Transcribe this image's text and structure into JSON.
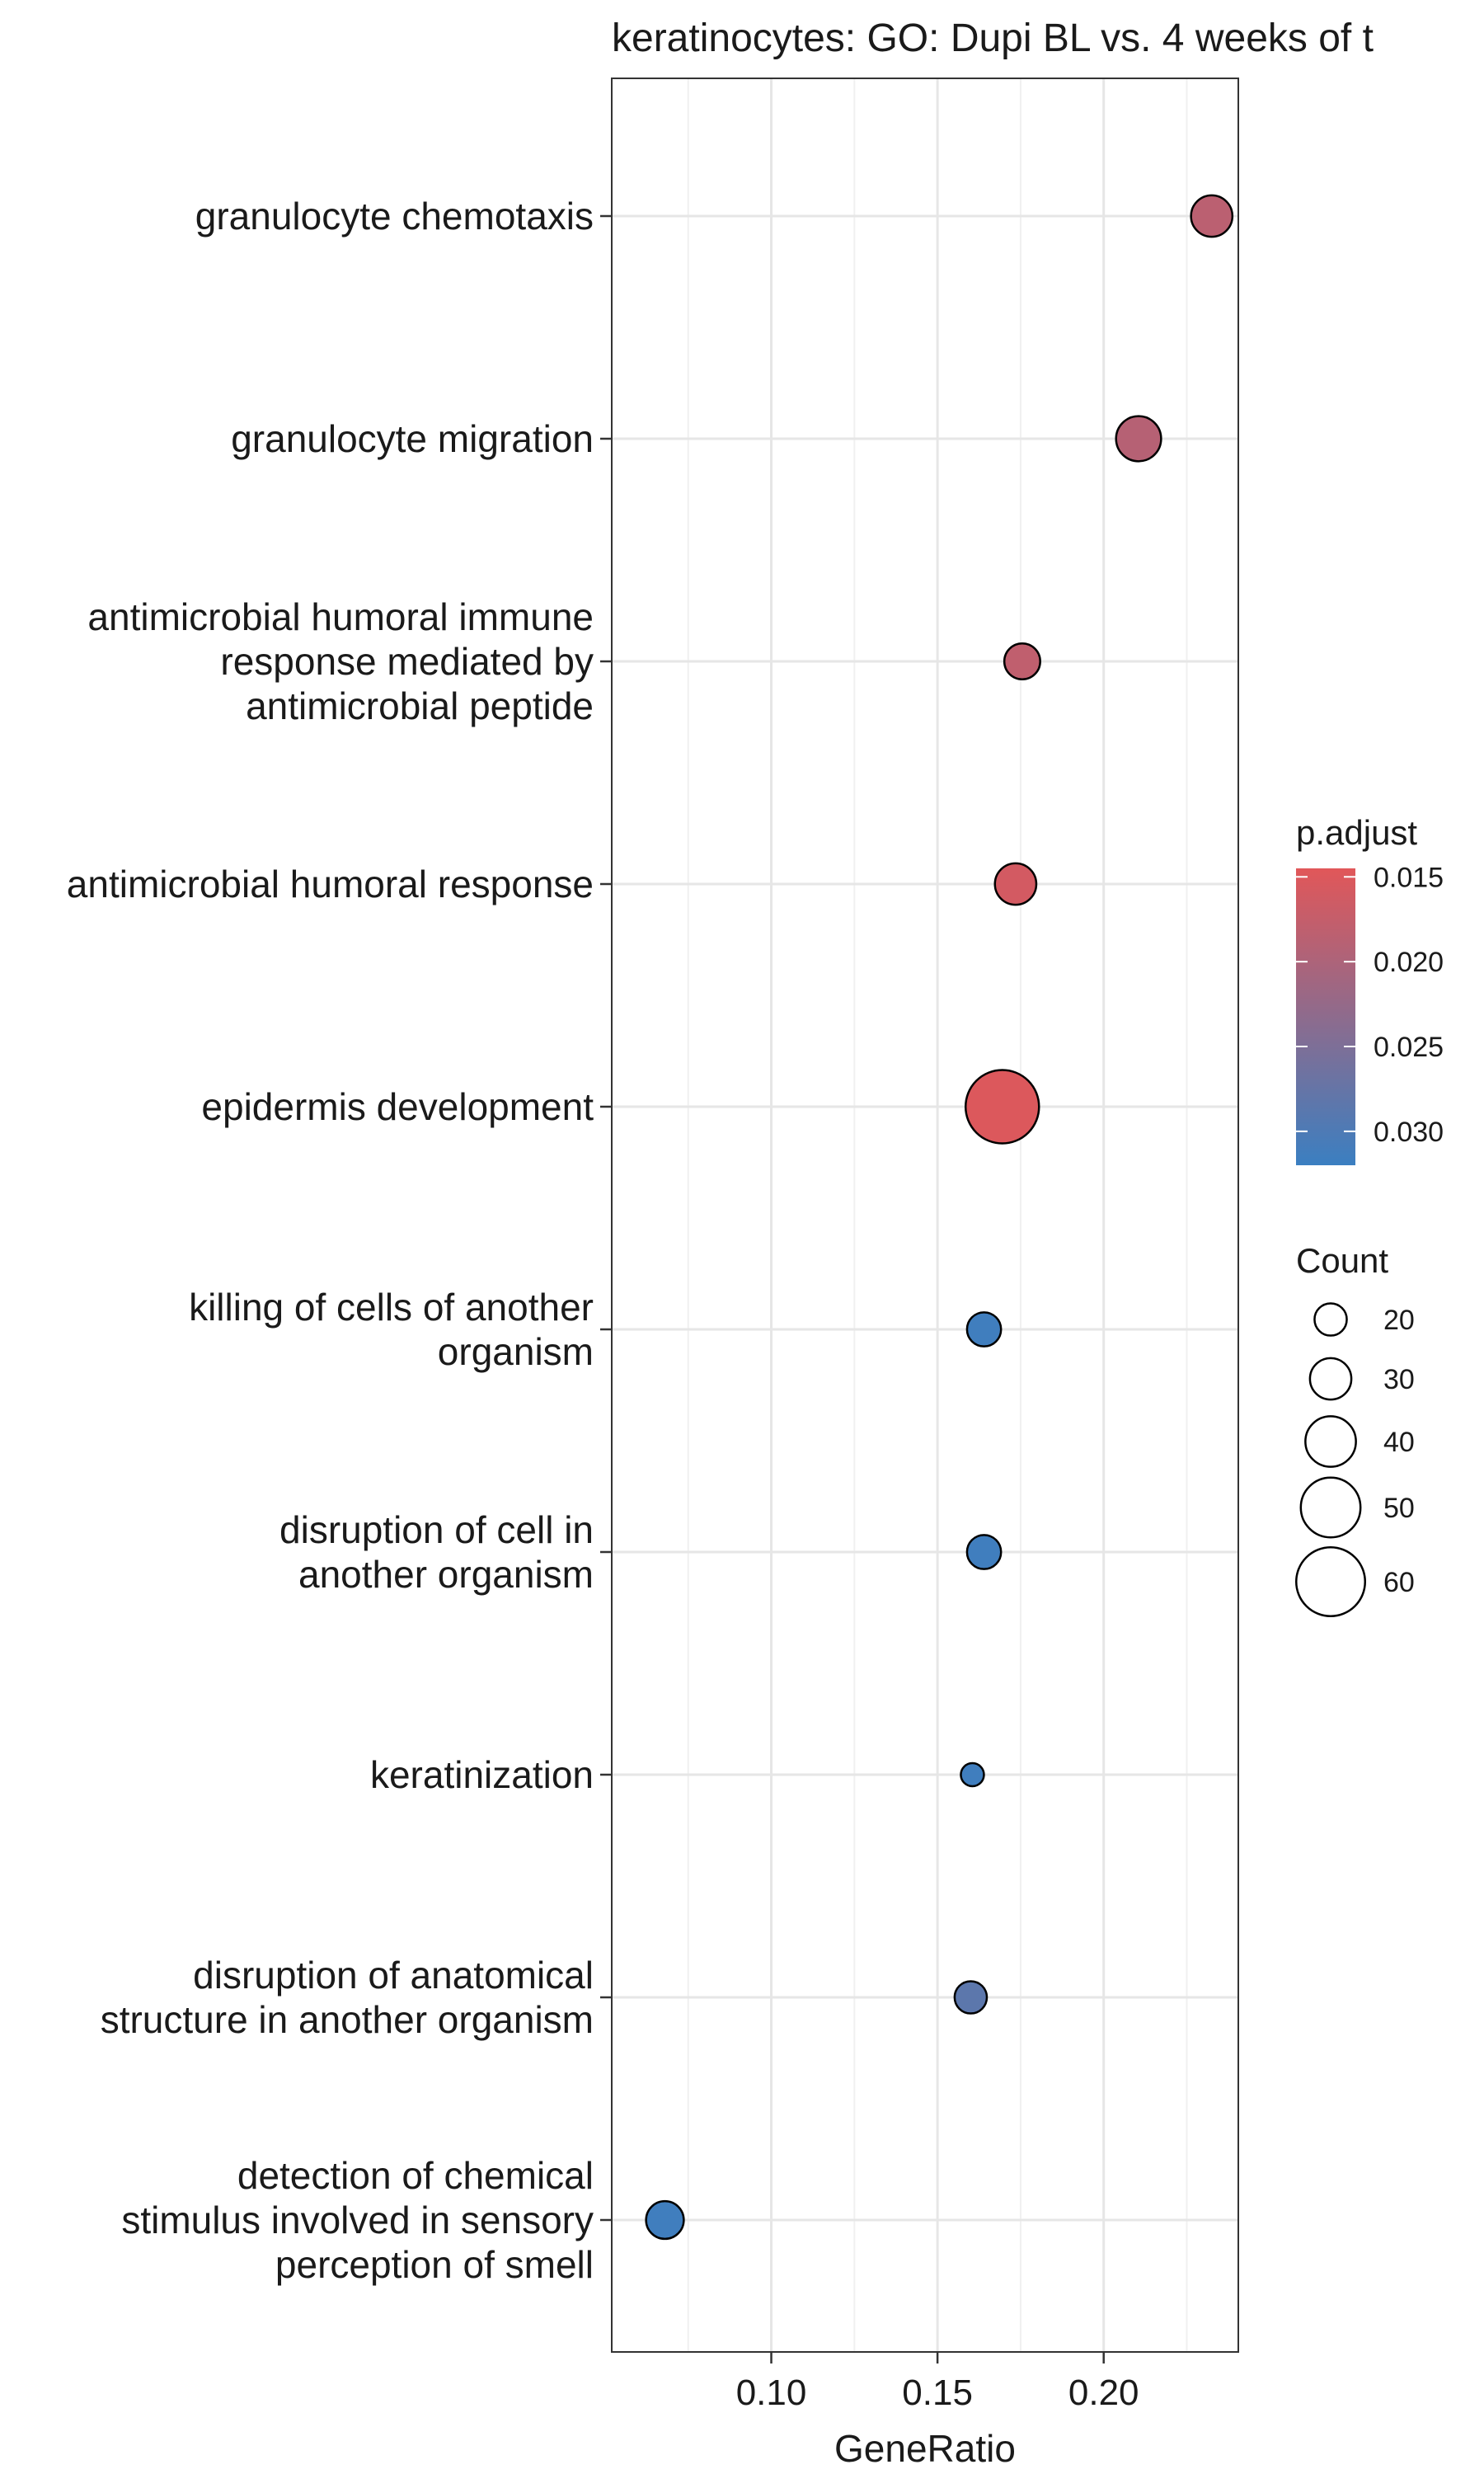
{
  "chart_data": {
    "type": "scatter",
    "title": "keratinocytes: GO: Dupi BL vs. 4 weeks of t",
    "xlabel": "GeneRatio",
    "ylabel": "",
    "xlim": [
      0.052,
      0.2405
    ],
    "xticks": [
      0.1,
      0.15,
      0.2
    ],
    "xtick_labels": [
      "0.10",
      "0.15",
      "0.20"
    ],
    "grid": true,
    "legend_position": "right",
    "terms": [
      {
        "label_lines": [
          "granulocyte chemotaxis"
        ],
        "x": 0.2325,
        "count": 30,
        "p_adjust": 0.0185
      },
      {
        "label_lines": [
          "granulocyte migration"
        ],
        "x": 0.2105,
        "count": 34,
        "p_adjust": 0.019
      },
      {
        "label_lines": [
          "antimicrobial humoral immune",
          "response mediated by",
          "antimicrobial peptide"
        ],
        "x": 0.1755,
        "count": 24,
        "p_adjust": 0.018
      },
      {
        "label_lines": [
          "antimicrobial humoral response"
        ],
        "x": 0.1735,
        "count": 30,
        "p_adjust": 0.016
      },
      {
        "label_lines": [
          "epidermis development"
        ],
        "x": 0.1695,
        "count": 65,
        "p_adjust": 0.015
      },
      {
        "label_lines": [
          "killing of cells of another",
          "organism"
        ],
        "x": 0.164,
        "count": 22,
        "p_adjust": 0.0315
      },
      {
        "label_lines": [
          "disruption of cell in",
          "another organism"
        ],
        "x": 0.164,
        "count": 22,
        "p_adjust": 0.0315
      },
      {
        "label_lines": [
          "keratinization"
        ],
        "x": 0.1605,
        "count": 10,
        "p_adjust": 0.0315
      },
      {
        "label_lines": [
          "disruption of anatomical",
          "structure in another organism"
        ],
        "x": 0.16,
        "count": 20,
        "p_adjust": 0.0285
      },
      {
        "label_lines": [
          "detection of chemical",
          "stimulus involved in sensory",
          "perception of smell"
        ],
        "x": 0.068,
        "count": 26,
        "p_adjust": 0.0315
      }
    ],
    "color_legend": {
      "title": "p.adjust",
      "low_color": "#E15759",
      "high_color": "#3B7FC1",
      "domain": [
        0.0145,
        0.032
      ],
      "ticks": [
        0.015,
        0.02,
        0.025,
        0.03
      ],
      "tick_labels": [
        "0.015",
        "0.020",
        "0.025",
        "0.030"
      ]
    },
    "size_legend": {
      "title": "Count",
      "values": [
        20,
        30,
        40,
        50,
        60
      ],
      "labels": [
        "20",
        "30",
        "40",
        "50",
        "60"
      ]
    }
  }
}
